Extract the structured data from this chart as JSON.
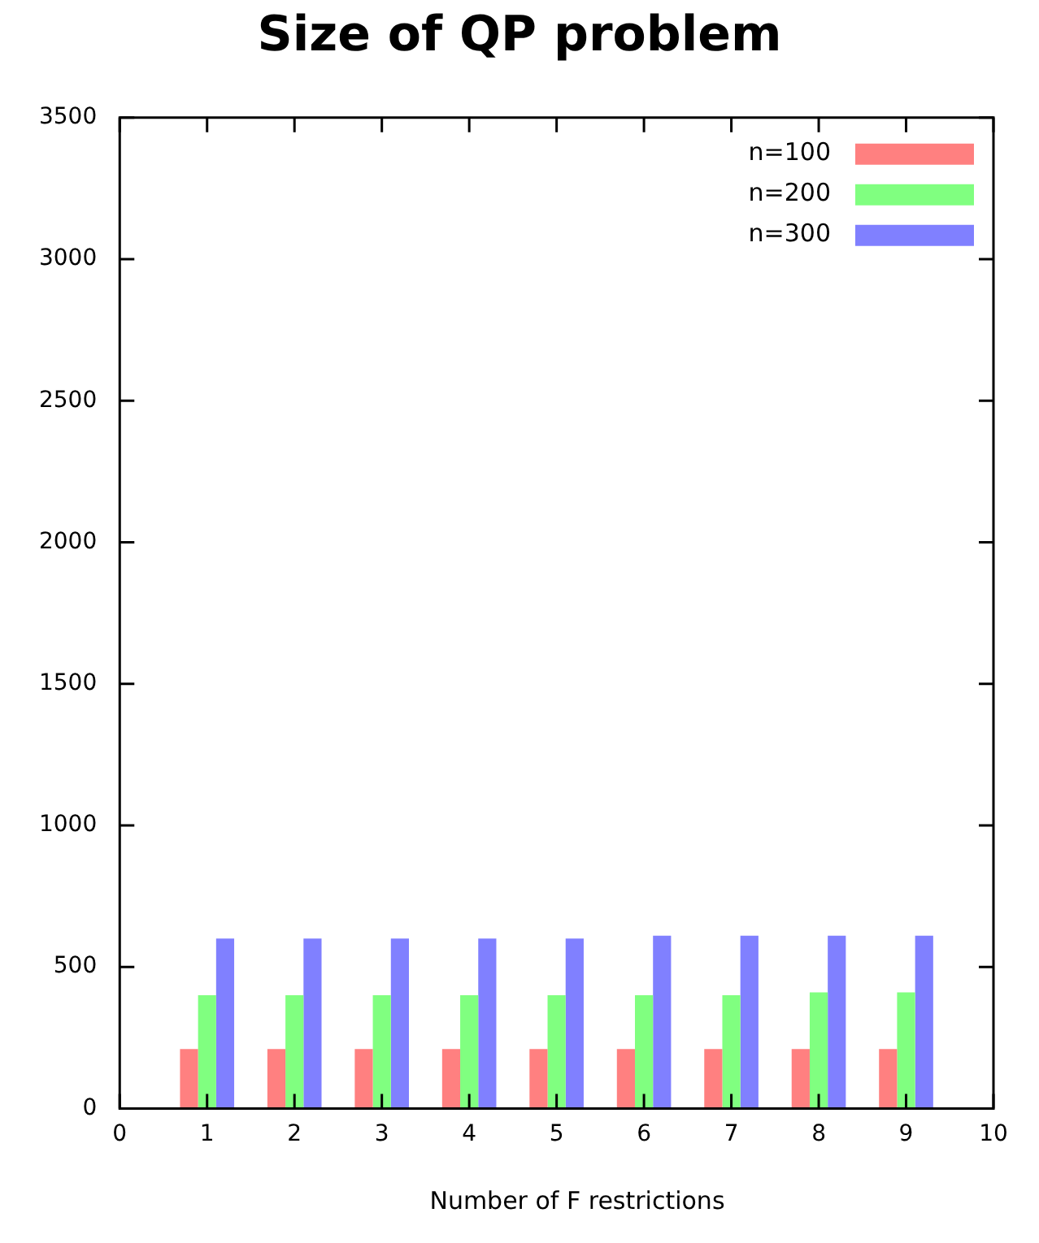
{
  "chart_data": {
    "type": "bar",
    "title": "Size of QP problem",
    "xlabel": "Number of F restrictions",
    "x": [
      1,
      2,
      3,
      4,
      5,
      6,
      7,
      8,
      9
    ],
    "series": [
      {
        "name": "n=100",
        "color": "#ff8080",
        "values": [
          210,
          210,
          210,
          210,
          210,
          210,
          210,
          210,
          210
        ]
      },
      {
        "name": "n=200",
        "color": "#80ff80",
        "values": [
          400,
          400,
          400,
          400,
          400,
          400,
          400,
          410,
          410
        ]
      },
      {
        "name": "n=300",
        "color": "#8080ff",
        "values": [
          600,
          600,
          600,
          600,
          600,
          610,
          610,
          610,
          610
        ]
      }
    ],
    "xlim": [
      0,
      10
    ],
    "xticks": [
      0,
      1,
      2,
      3,
      4,
      5,
      6,
      7,
      8,
      9,
      10
    ],
    "ylim": [
      0,
      3500
    ],
    "yticks": [
      0,
      500,
      1000,
      1500,
      2000,
      2500,
      3000,
      3500
    ],
    "grid": false,
    "legend": "top right"
  }
}
